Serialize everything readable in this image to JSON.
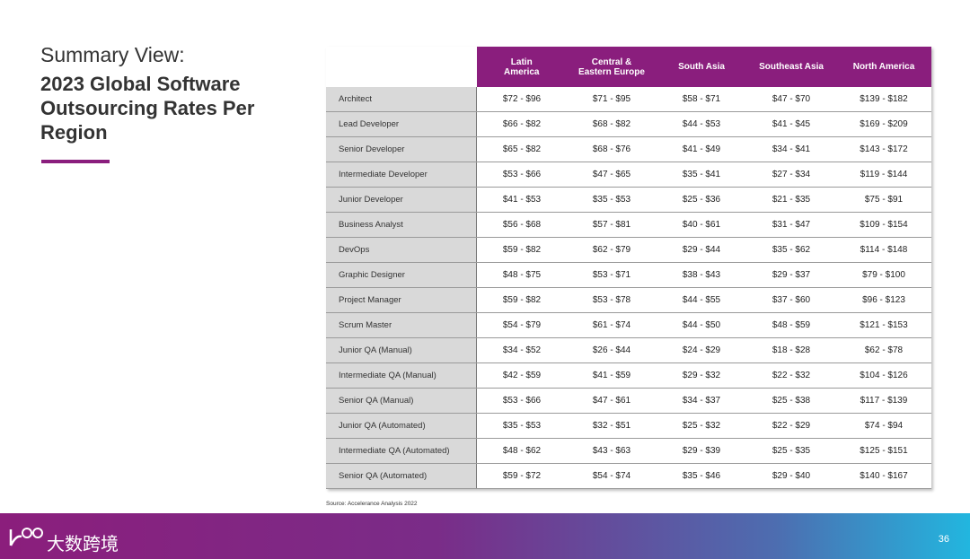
{
  "header": {
    "kicker": "Summary View:",
    "title": "2023 Global Software Outsourcing Rates Per Region"
  },
  "table": {
    "columns": [
      "Latin America",
      "Central & Eastern Europe",
      "South Asia",
      "Southeast Asia",
      "North America"
    ],
    "rows": [
      {
        "role": "Architect",
        "rates": [
          "$72 - $96",
          "$71 - $95",
          "$58 - $71",
          "$47 - $70",
          "$139 - $182"
        ]
      },
      {
        "role": "Lead Developer",
        "rates": [
          "$66 - $82",
          "$68 - $82",
          "$44 - $53",
          "$41 - $45",
          "$169 - $209"
        ]
      },
      {
        "role": "Senior Developer",
        "rates": [
          "$65 - $82",
          "$68 - $76",
          "$41 - $49",
          "$34 - $41",
          "$143 - $172"
        ]
      },
      {
        "role": "Intermediate Developer",
        "rates": [
          "$53 - $66",
          "$47 - $65",
          "$35 - $41",
          "$27 - $34",
          "$119 - $144"
        ]
      },
      {
        "role": "Junior Developer",
        "rates": [
          "$41 - $53",
          "$35 - $53",
          "$25 - $36",
          "$21 - $35",
          "$75 - $91"
        ]
      },
      {
        "role": "Business Analyst",
        "rates": [
          "$56 - $68",
          "$57 - $81",
          "$40 - $61",
          "$31 - $47",
          "$109 - $154"
        ]
      },
      {
        "role": "DevOps",
        "rates": [
          "$59 - $82",
          "$62 - $79",
          "$29 - $44",
          "$35 - $62",
          "$114 - $148"
        ]
      },
      {
        "role": "Graphic Designer",
        "rates": [
          "$48 - $75",
          "$53 - $71",
          "$38 - $43",
          "$29 - $37",
          "$79 - $100"
        ]
      },
      {
        "role": "Project Manager",
        "rates": [
          "$59 - $82",
          "$53 - $78",
          "$44 - $55",
          "$37 - $60",
          "$96 - $123"
        ]
      },
      {
        "role": "Scrum Master",
        "rates": [
          "$54 - $79",
          "$61 - $74",
          "$44 - $50",
          "$48 - $59",
          "$121 - $153"
        ]
      },
      {
        "role": "Junior QA (Manual)",
        "rates": [
          "$34 - $52",
          "$26 - $44",
          "$24 - $29",
          "$18 - $28",
          "$62 - $78"
        ]
      },
      {
        "role": "Intermediate QA (Manual)",
        "rates": [
          "$42 - $59",
          "$41 - $59",
          "$29 - $32",
          "$22 - $32",
          "$104 - $126"
        ]
      },
      {
        "role": "Senior QA (Manual)",
        "rates": [
          "$53 - $66",
          "$47 - $61",
          "$34 - $37",
          "$25 - $38",
          "$117 - $139"
        ]
      },
      {
        "role": "Junior QA (Automated)",
        "rates": [
          "$35 - $53",
          "$32 - $51",
          "$25 - $32",
          "$22 - $29",
          "$74 - $94"
        ]
      },
      {
        "role": "Intermediate QA (Automated)",
        "rates": [
          "$48 - $62",
          "$43 - $63",
          "$29 - $39",
          "$25 - $35",
          "$125 - $151"
        ]
      },
      {
        "role": "Senior QA (Automated)",
        "rates": [
          "$59 - $72",
          "$54 - $74",
          "$35 - $46",
          "$29 - $40",
          "$140 - $167"
        ]
      }
    ]
  },
  "source": "Source: Accelerance Analysis 2022",
  "footer": {
    "brand": "大数跨境",
    "page": "36"
  }
}
